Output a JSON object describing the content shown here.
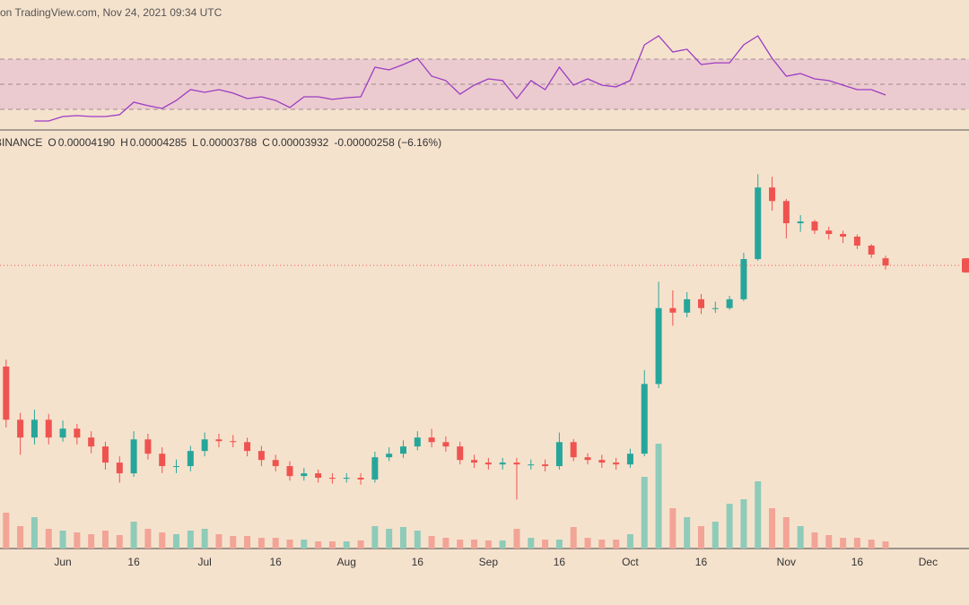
{
  "chart_data": {
    "type": "candlestick",
    "caption": "on TradingView.com, Nov 24, 2021 09:34 UTC",
    "header": {
      "symbol": "BINANCE",
      "items": [
        {
          "key": "O",
          "value": "0.00004190"
        },
        {
          "key": "H",
          "value": "0.00004285"
        },
        {
          "key": "L",
          "value": "0.00003788"
        },
        {
          "key": "C",
          "value": "0.00003932"
        }
      ],
      "change": "-0.00000258 (−6.16%)"
    },
    "categories": [
      null,
      null,
      null,
      null,
      "Jun",
      null,
      null,
      null,
      null,
      "16",
      null,
      null,
      null,
      null,
      "Jul",
      null,
      null,
      null,
      null,
      "16",
      null,
      null,
      null,
      null,
      "Aug",
      null,
      null,
      null,
      null,
      "16",
      null,
      null,
      null,
      null,
      "Sep",
      null,
      null,
      null,
      null,
      "16",
      null,
      null,
      null,
      null,
      "Oct",
      null,
      null,
      null,
      null,
      "16",
      null,
      null,
      null,
      null,
      null,
      "Nov",
      null,
      null,
      null,
      null,
      "16",
      null,
      null,
      null,
      null,
      "Dec"
    ],
    "open": [
      1.6e-05,
      9.97e-06,
      8.51e-06,
      9.97e-06,
      8.51e-06,
      9.21e-06,
      8.51e-06,
      7.86e-06,
      6.81e-06,
      6.19e-06,
      8.37e-06,
      7.37e-06,
      6.6e-06,
      6.6e-06,
      7.55e-06,
      8.37e-06,
      8.24e-06,
      8.17e-06,
      7.55e-06,
      6.97e-06,
      6.6e-06,
      6.04e-06,
      6.19e-06,
      5.95e-06,
      5.9e-06,
      5.95e-06,
      5.86e-06,
      7.14e-06,
      7.37e-06,
      7.86e-06,
      8.51e-06,
      8.17e-06,
      7.86e-06,
      6.97e-06,
      6.81e-06,
      6.7e-06,
      6.81e-06,
      6.7e-06,
      6.7e-06,
      6.6e-06,
      8.17e-06,
      7.14e-06,
      6.97e-06,
      6.81e-06,
      6.7e-06,
      7.37e-06,
      1.37e-05,
      2.69e-05,
      2.584e-05,
      2.91e-05,
      2.69e-05,
      2.69e-05,
      2.91e-05,
      4.16e-05,
      7.86e-05,
      6.97e-05,
      5.72e-05,
      5.81e-05,
      5.36e-05,
      5.2e-05,
      5.08e-05,
      4.69e-05,
      4.19e-05,
      null,
      null,
      null
    ],
    "high": [
      1.7e-05,
      1.06e-05,
      1.09e-05,
      1.05e-05,
      9.9e-06,
      9.6e-06,
      9e-06,
      8.2e-06,
      7.2e-06,
      9e-06,
      8.8e-06,
      7.8e-06,
      7e-06,
      7.9e-06,
      8.9e-06,
      8.8e-06,
      8.7e-06,
      8.5e-06,
      7.9e-06,
      7.3e-06,
      6.9e-06,
      6.5e-06,
      6.4e-06,
      6.2e-06,
      6.2e-06,
      6.2e-06,
      7.5e-06,
      7.8e-06,
      8.3e-06,
      9e-06,
      9.2e-06,
      8.6e-06,
      8.2e-06,
      7.3e-06,
      7.1e-06,
      7.1e-06,
      7.1e-06,
      7e-06,
      7e-06,
      8.9e-06,
      8.4e-06,
      7.4e-06,
      7.3e-06,
      7.1e-06,
      7.7e-06,
      1.55e-05,
      3.4e-05,
      3.15e-05,
      3.1e-05,
      3.05e-05,
      2.85e-05,
      3e-05,
      4.4e-05,
      8.85e-05,
      8.65e-05,
      7.1e-05,
      6.15e-05,
      5.9e-05,
      5.55e-05,
      5.35e-05,
      5.18e-05,
      4.75e-05,
      4.285e-05,
      null,
      null,
      null
    ],
    "low": [
      9.3e-06,
      7.3e-06,
      8e-06,
      8e-06,
      8.2e-06,
      8e-06,
      7.4e-06,
      6.4e-06,
      5.7e-06,
      6e-06,
      7e-06,
      6.2e-06,
      6.2e-06,
      6.3e-06,
      7.2e-06,
      7.8e-06,
      7.8e-06,
      7.2e-06,
      6.6e-06,
      6.3e-06,
      5.8e-06,
      5.8e-06,
      5.7e-06,
      5.65e-06,
      5.7e-06,
      5.6e-06,
      5.7e-06,
      6.9e-06,
      7.1e-06,
      7.6e-06,
      7.8e-06,
      7.5e-06,
      6.7e-06,
      6.5e-06,
      6.4e-06,
      6.4e-06,
      4.9e-06,
      6.4e-06,
      6.3e-06,
      6.4e-06,
      6.9e-06,
      6.7e-06,
      6.5e-06,
      6.4e-06,
      6.5e-06,
      7.2e-06,
      1.32e-05,
      2.3e-05,
      2.48e-05,
      2.55e-05,
      2.58e-05,
      2.65e-05,
      2.86e-05,
      4.1e-05,
      6.4e-05,
      5e-05,
      5.3e-05,
      5.2e-05,
      4.95e-05,
      4.8e-05,
      4.55e-05,
      4.2e-05,
      3.788e-05,
      null,
      null,
      null
    ],
    "close": [
      9.97e-06,
      8.51e-06,
      9.97e-06,
      8.51e-06,
      9.21e-06,
      8.51e-06,
      7.86e-06,
      6.81e-06,
      6.19e-06,
      8.37e-06,
      7.37e-06,
      6.6e-06,
      6.6e-06,
      7.55e-06,
      8.37e-06,
      8.24e-06,
      8.17e-06,
      7.55e-06,
      6.97e-06,
      6.6e-06,
      6.04e-06,
      6.19e-06,
      5.95e-06,
      5.9e-06,
      5.95e-06,
      5.86e-06,
      7.14e-06,
      7.37e-06,
      7.86e-06,
      8.51e-06,
      8.17e-06,
      7.86e-06,
      6.97e-06,
      6.81e-06,
      6.7e-06,
      6.81e-06,
      6.7e-06,
      6.7e-06,
      6.6e-06,
      8.17e-06,
      7.14e-06,
      6.97e-06,
      6.81e-06,
      6.7e-06,
      7.37e-06,
      1.37e-05,
      2.69e-05,
      2.584e-05,
      2.91e-05,
      2.69e-05,
      2.69e-05,
      2.91e-05,
      4.16e-05,
      7.86e-05,
      6.97e-05,
      5.72e-05,
      5.81e-05,
      5.36e-05,
      5.2e-05,
      5.08e-05,
      4.69e-05,
      4.33e-05,
      3.932e-05,
      null,
      null,
      null
    ],
    "volume": [
      40,
      25,
      35,
      22,
      20,
      18,
      16,
      20,
      15,
      30,
      22,
      18,
      16,
      20,
      22,
      16,
      14,
      14,
      12,
      12,
      10,
      10,
      8,
      8,
      8,
      9,
      25,
      22,
      24,
      20,
      14,
      12,
      10,
      10,
      9,
      9,
      22,
      12,
      10,
      10,
      24,
      12,
      10,
      10,
      16,
      80,
      117,
      45,
      35,
      25,
      30,
      50,
      55,
      75,
      45,
      35,
      25,
      18,
      15,
      12,
      12,
      10,
      8,
      null,
      null,
      null
    ],
    "rsi": [
      null,
      null,
      20.7,
      20.7,
      24.3,
      25,
      24.3,
      24.3,
      25.7,
      35.7,
      32.9,
      30.7,
      37.1,
      45.7,
      43.6,
      45.7,
      42.9,
      38.6,
      40,
      37.1,
      31.4,
      40,
      40,
      37.9,
      39.3,
      40,
      63.6,
      61.4,
      65.7,
      70.7,
      56.4,
      52.9,
      42.1,
      49.3,
      54.3,
      52.9,
      38.6,
      52.9,
      45.7,
      63.6,
      49.3,
      54.3,
      49.3,
      47.9,
      52.9,
      81.4,
      88.6,
      75.7,
      77.9,
      65.7,
      67.1,
      67.1,
      81.4,
      88.6,
      70.7,
      56.4,
      58.6,
      54.3,
      52.9,
      49.3,
      45.7,
      45.7,
      41.4,
      null,
      null,
      null
    ],
    "log_scale": true,
    "ylim": [
      4.8e-06,
      0.000126
    ],
    "volume_lim": [
      0,
      130
    ],
    "rsi_lim": [
      0,
      100
    ],
    "rsi_levels": [
      70,
      50,
      30
    ],
    "up_color": "#26a69a",
    "down_color": "#ef5350",
    "up_volume_color": "#8fcbb9",
    "down_volume_color": "#f2a497",
    "rsi_color": "#9c3cc4",
    "rsi_band_color": "#e8c5cf"
  }
}
